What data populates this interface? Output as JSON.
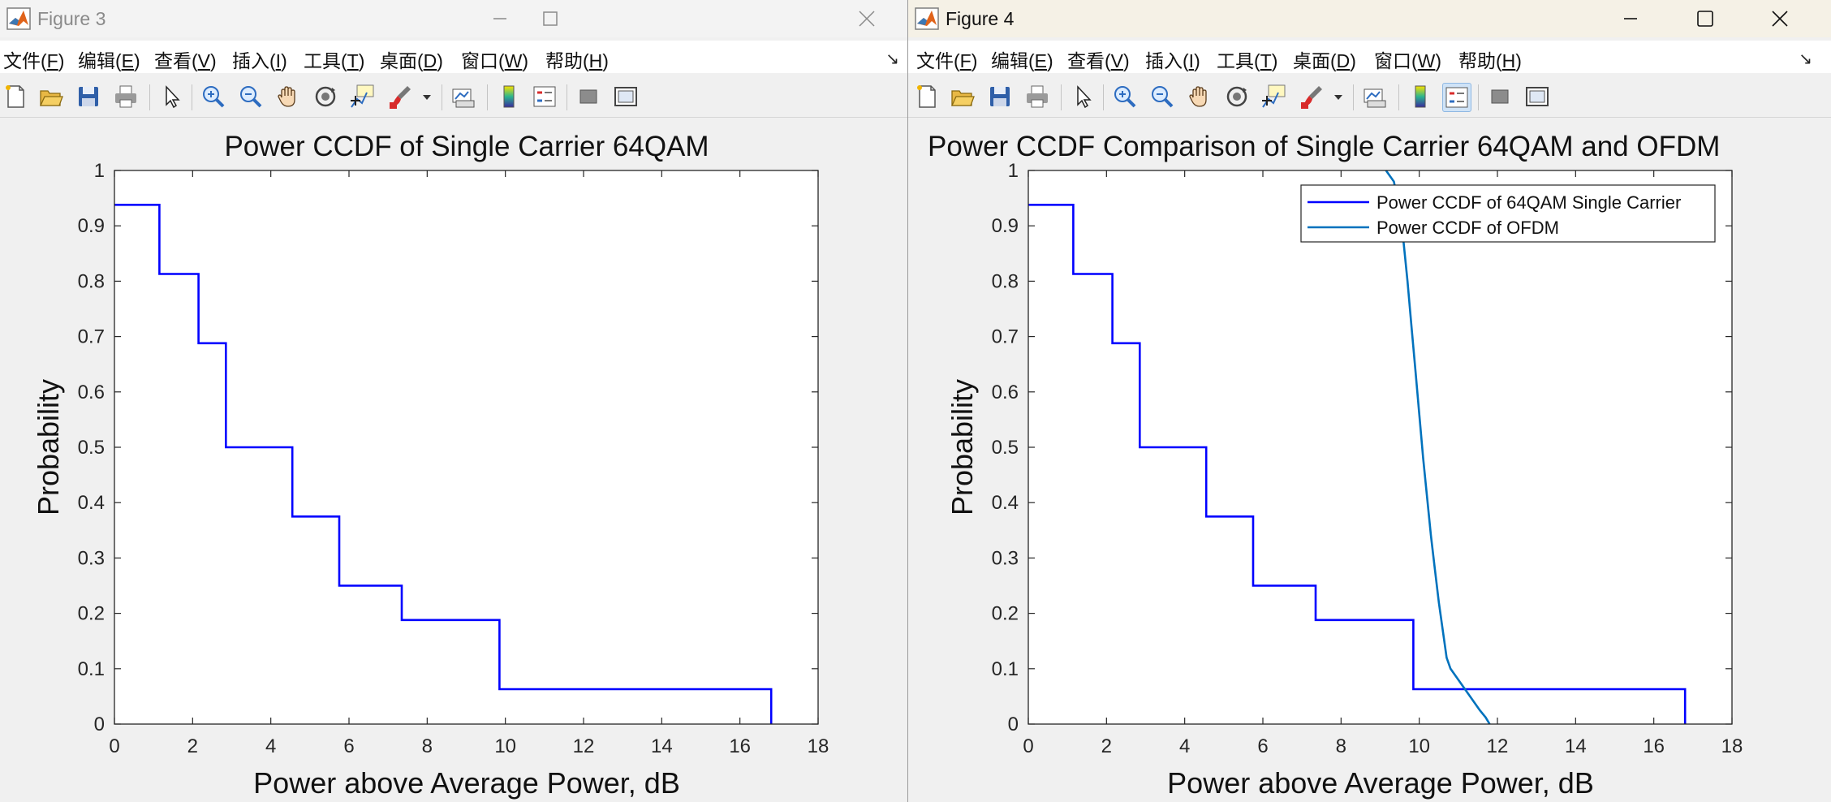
{
  "colors": {
    "series_single": "#0000ff",
    "series_ofdm": "#0072bd",
    "axes": "#262626"
  },
  "windows": [
    {
      "title": "Figure 3",
      "menu": [
        {
          "text": "文件(",
          "key": "F",
          "end": ")"
        },
        {
          "text": "编辑(",
          "key": "E",
          "end": ")"
        },
        {
          "text": "查看(",
          "key": "V",
          "end": ")"
        },
        {
          "text": "插入(",
          "key": "I",
          "end": ")"
        },
        {
          "text": "工具(",
          "key": "T",
          "end": ")"
        },
        {
          "text": "桌面(",
          "key": "D",
          "end": ")"
        },
        {
          "text": "窗口(",
          "key": "W",
          "end": ")"
        },
        {
          "text": "帮助(",
          "key": "H",
          "end": ")"
        }
      ],
      "toolbar_icons": [
        "new-figure-icon",
        "open-file-icon",
        "save-icon",
        "print-icon",
        "pointer-icon",
        "zoom-in-icon",
        "zoom-out-icon",
        "pan-icon",
        "rotate-3d-icon",
        "data-cursor-icon",
        "brush-icon",
        "brush-dropdown-icon",
        "link-plot-icon",
        "colorbar-icon",
        "legend-icon",
        "hide-plot-tools-icon",
        "show-plot-tools-icon"
      ],
      "chart_data": {
        "type": "line",
        "title": "Power CCDF of Single Carrier 64QAM",
        "xlabel": "Power above Average Power, dB",
        "ylabel": "Probability",
        "xlim": [
          0,
          18
        ],
        "ylim": [
          0,
          1
        ],
        "xticks": [
          "0",
          "2",
          "4",
          "6",
          "8",
          "10",
          "12",
          "14",
          "16",
          "18"
        ],
        "yticks": [
          "0",
          "0.1",
          "0.2",
          "0.3",
          "0.4",
          "0.5",
          "0.6",
          "0.7",
          "0.8",
          "0.9",
          "1"
        ],
        "grid": false,
        "series": [
          {
            "color": "#0000ff",
            "x": [
              0,
              1.15,
              1.15,
              2.15,
              2.15,
              2.85,
              2.85,
              4.55,
              4.55,
              5.75,
              5.75,
              7.35,
              7.35,
              9.85,
              9.85,
              16.8,
              16.8
            ],
            "y": [
              0.938,
              0.938,
              0.813,
              0.813,
              0.688,
              0.688,
              0.5,
              0.5,
              0.375,
              0.375,
              0.25,
              0.25,
              0.188,
              0.188,
              0.063,
              0.063,
              0
            ]
          }
        ]
      }
    },
    {
      "title": "Figure 4",
      "menu": [
        {
          "text": "文件(",
          "key": "F",
          "end": ")"
        },
        {
          "text": "编辑(",
          "key": "E",
          "end": ")"
        },
        {
          "text": "查看(",
          "key": "V",
          "end": ")"
        },
        {
          "text": "插入(",
          "key": "I",
          "end": ")"
        },
        {
          "text": "工具(",
          "key": "T",
          "end": ")"
        },
        {
          "text": "桌面(",
          "key": "D",
          "end": ")"
        },
        {
          "text": "窗口(",
          "key": "W",
          "end": ")"
        },
        {
          "text": "帮助(",
          "key": "H",
          "end": ")"
        }
      ],
      "toolbar_icons": [
        "new-figure-icon",
        "open-file-icon",
        "save-icon",
        "print-icon",
        "pointer-icon",
        "zoom-in-icon",
        "zoom-out-icon",
        "pan-icon",
        "rotate-3d-icon",
        "data-cursor-icon",
        "brush-icon",
        "brush-dropdown-icon",
        "link-plot-icon",
        "colorbar-icon",
        "legend-icon",
        "hide-plot-tools-icon",
        "show-plot-tools-icon"
      ],
      "chart_data": {
        "type": "line",
        "title": "Power CCDF Comparison of Single Carrier 64QAM and OFDM",
        "xlabel": "Power above Average Power, dB",
        "ylabel": "Probability",
        "xlim": [
          0,
          18
        ],
        "ylim": [
          0,
          1
        ],
        "xticks": [
          "0",
          "2",
          "4",
          "6",
          "8",
          "10",
          "12",
          "14",
          "16",
          "18"
        ],
        "yticks": [
          "0",
          "0.1",
          "0.2",
          "0.3",
          "0.4",
          "0.5",
          "0.6",
          "0.7",
          "0.8",
          "0.9",
          "1"
        ],
        "grid": false,
        "legend_placement": "top-right",
        "series": [
          {
            "name": "Power CCDF of 64QAM Single Carrier",
            "color": "#0000ff",
            "x": [
              0,
              1.15,
              1.15,
              2.15,
              2.15,
              2.85,
              2.85,
              4.55,
              4.55,
              5.75,
              5.75,
              7.35,
              7.35,
              9.85,
              9.85,
              16.8,
              16.8
            ],
            "y": [
              0.938,
              0.938,
              0.813,
              0.813,
              0.688,
              0.688,
              0.5,
              0.5,
              0.375,
              0.375,
              0.25,
              0.25,
              0.188,
              0.188,
              0.063,
              0.063,
              0
            ]
          },
          {
            "name": "Power CCDF of OFDM",
            "color": "#0072bd",
            "x": [
              9.15,
              9.35,
              9.5,
              9.6,
              9.7,
              9.8,
              9.9,
              10.0,
              10.1,
              10.2,
              10.3,
              10.4,
              10.5,
              10.6,
              10.7,
              10.8,
              11.0,
              11.2,
              11.4,
              11.55,
              11.7,
              11.8
            ],
            "y": [
              1.0,
              0.98,
              0.93,
              0.87,
              0.8,
              0.72,
              0.64,
              0.56,
              0.48,
              0.41,
              0.34,
              0.28,
              0.22,
              0.17,
              0.12,
              0.1,
              0.08,
              0.06,
              0.04,
              0.025,
              0.012,
              0.0
            ]
          }
        ]
      }
    }
  ]
}
